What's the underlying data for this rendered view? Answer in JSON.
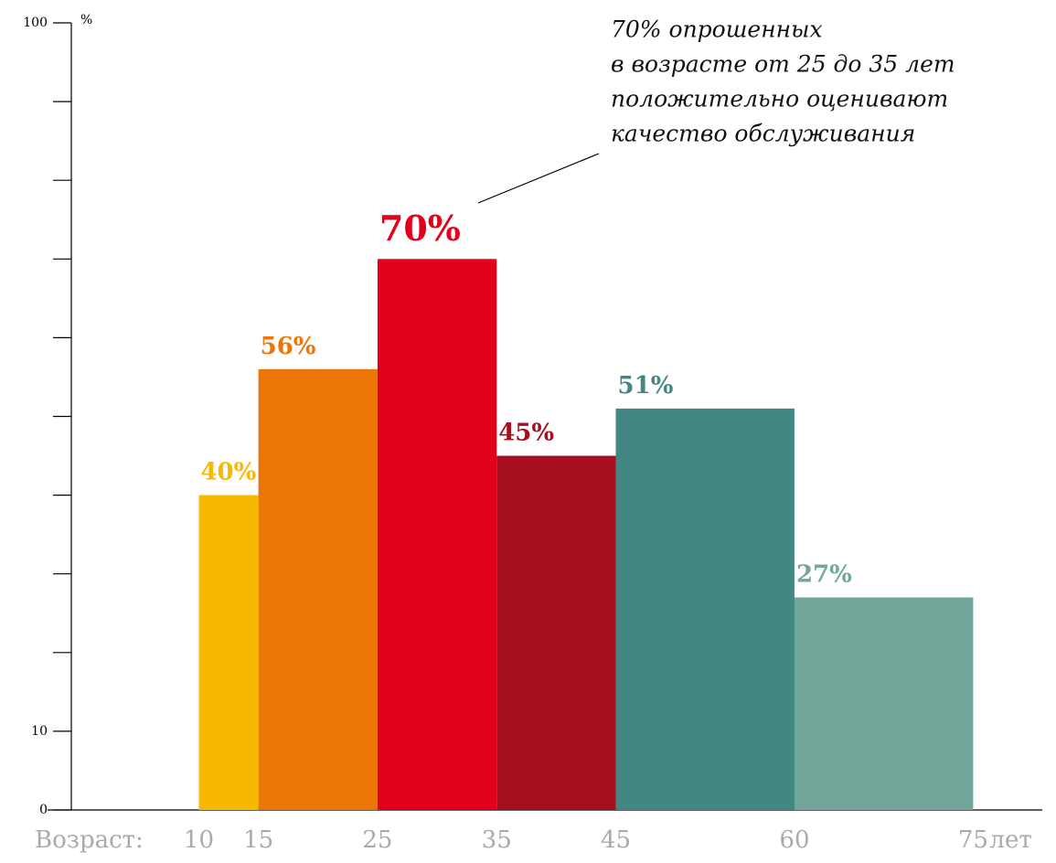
{
  "chart_data": {
    "type": "histogram",
    "bins": [
      10,
      15,
      25,
      35,
      45,
      60,
      75
    ],
    "values": [
      40,
      56,
      70,
      45,
      51,
      27
    ],
    "value_labels": [
      "40%",
      "56%",
      "70%",
      "45%",
      "51%",
      "27%"
    ],
    "colors": [
      "#f9b800",
      "#ec7605",
      "#e2001a",
      "#a6101e",
      "#438783",
      "#72a69a"
    ],
    "xlim": [
      -2.7,
      80.8
    ],
    "xticks": [
      10,
      15,
      25,
      35,
      45,
      60,
      75
    ],
    "x_label": "Возраст:",
    "x_unit": "лет",
    "ylim": [
      0,
      100
    ],
    "yticks": [
      0,
      10,
      100
    ],
    "yminor": [
      20,
      30,
      40,
      50,
      60,
      70,
      80,
      90
    ],
    "y_unit": "%",
    "annotation": [
      "70% опрошенных",
      "в возрасте от 25 до 35 лет",
      "положительно оценивают",
      "качество обслуживания"
    ]
  }
}
